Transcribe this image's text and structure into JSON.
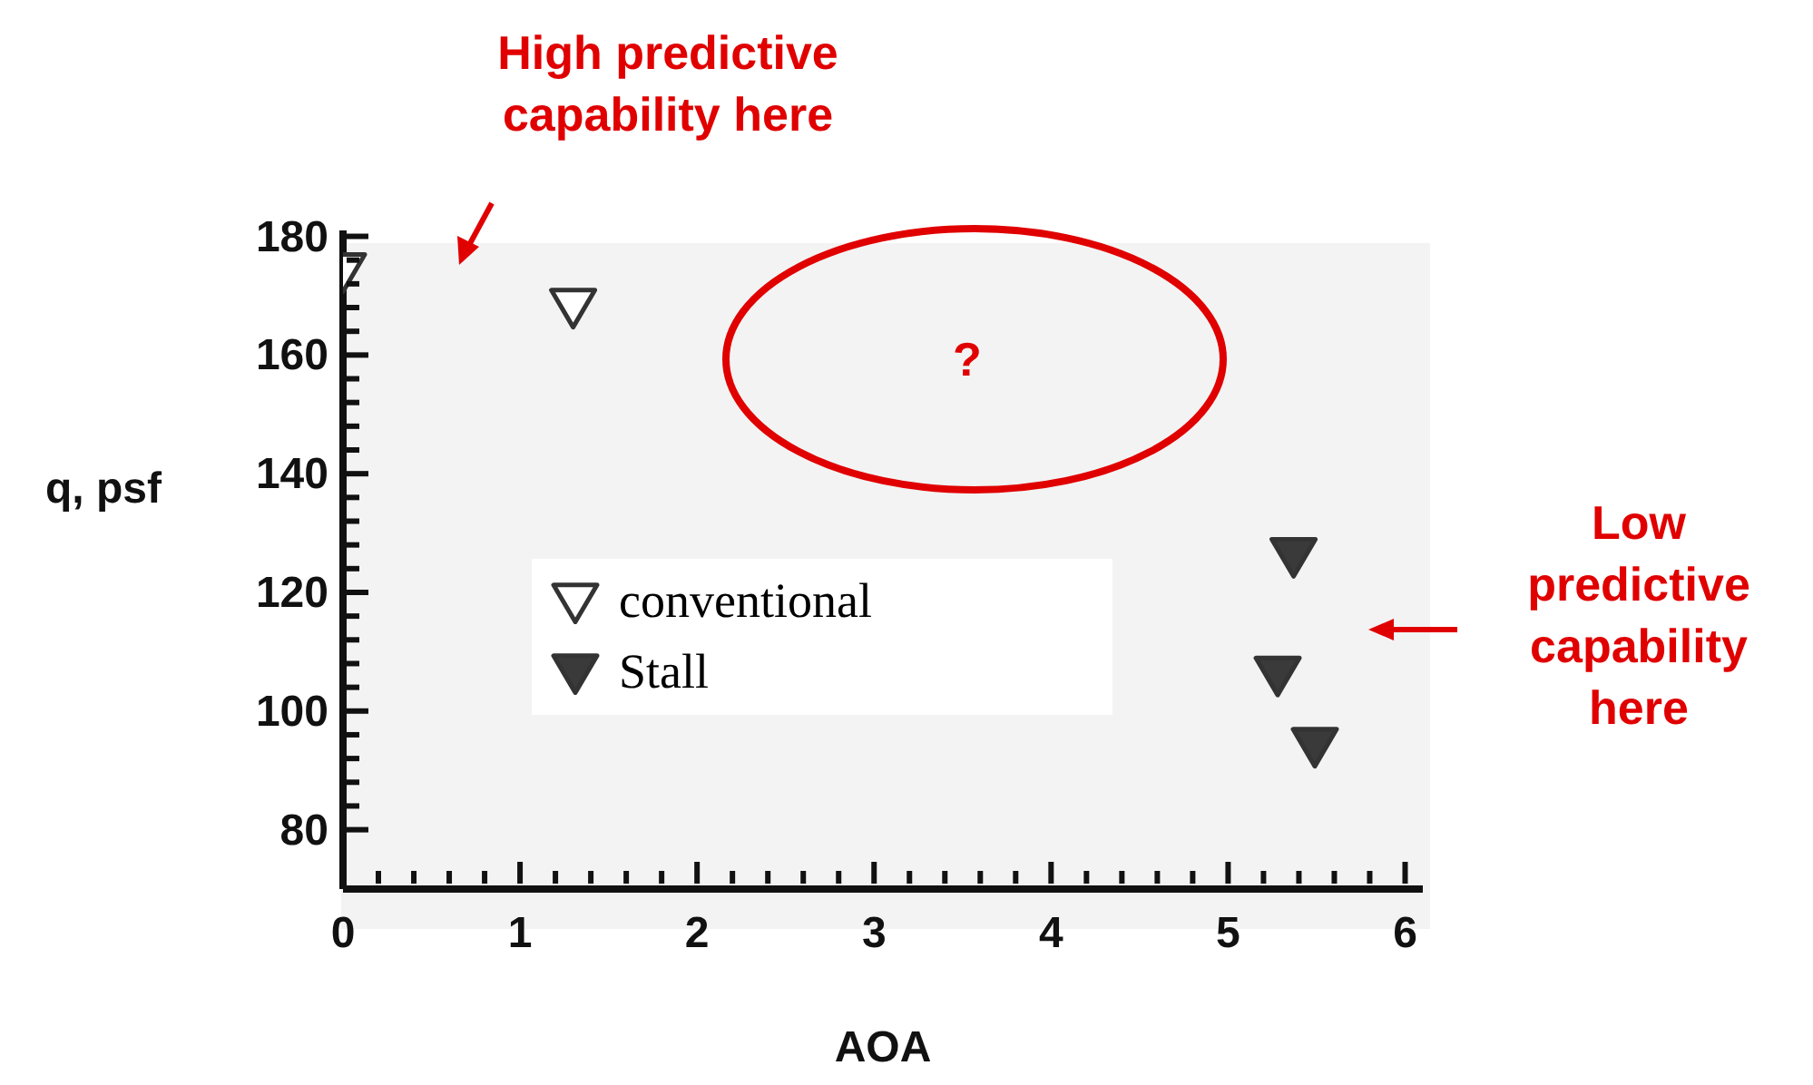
{
  "chart_data": {
    "type": "scatter",
    "xlabel": "AOA",
    "ylabel": "q, psf",
    "xlim": [
      0,
      6.1
    ],
    "ylim": [
      70,
      181
    ],
    "xticks": [
      0,
      {
        "value": 0.2,
        "label": null
      },
      {
        "value": 0.4,
        "label": null
      },
      {
        "value": 0.6,
        "label": null
      },
      {
        "value": 0.8,
        "label": null
      },
      1,
      {
        "value": 1.2,
        "label": null
      },
      {
        "value": 1.4,
        "label": null
      },
      {
        "value": 1.6,
        "label": null
      },
      {
        "value": 1.8,
        "label": null
      },
      2,
      {
        "value": 2.2,
        "label": null
      },
      {
        "value": 2.4,
        "label": null
      },
      {
        "value": 2.6,
        "label": null
      },
      {
        "value": 2.8,
        "label": null
      },
      3,
      {
        "value": 3.2,
        "label": null
      },
      {
        "value": 3.4,
        "label": null
      },
      {
        "value": 3.6,
        "label": null
      },
      {
        "value": 3.8,
        "label": null
      },
      4,
      {
        "value": 4.2,
        "label": null
      },
      {
        "value": 4.4,
        "label": null
      },
      {
        "value": 4.6,
        "label": null
      },
      {
        "value": 4.8,
        "label": null
      },
      5,
      {
        "value": 5.2,
        "label": null
      },
      {
        "value": 5.4,
        "label": null
      },
      {
        "value": 5.6,
        "label": null
      },
      {
        "value": 5.8,
        "label": null
      },
      6
    ],
    "yticks": [
      80,
      {
        "value": 84,
        "label": null
      },
      {
        "value": 88,
        "label": null
      },
      {
        "value": 92,
        "label": null
      },
      {
        "value": 96,
        "label": null
      },
      100,
      {
        "value": 104,
        "label": null
      },
      {
        "value": 108,
        "label": null
      },
      {
        "value": 112,
        "label": null
      },
      {
        "value": 116,
        "label": null
      },
      120,
      {
        "value": 124,
        "label": null
      },
      {
        "value": 128,
        "label": null
      },
      {
        "value": 132,
        "label": null
      },
      {
        "value": 136,
        "label": null
      },
      140,
      {
        "value": 144,
        "label": null
      },
      {
        "value": 148,
        "label": null
      },
      {
        "value": 152,
        "label": null
      },
      {
        "value": 156,
        "label": null
      },
      160,
      {
        "value": 164,
        "label": null
      },
      {
        "value": 168,
        "label": null
      },
      {
        "value": 172,
        "label": null
      },
      {
        "value": 176,
        "label": null
      },
      180
    ],
    "series": [
      {
        "name": "conventional",
        "color": "#ffffff",
        "x": [
          0,
          1.3
        ],
        "values": [
          174,
          168
        ]
      },
      {
        "name": "Stall",
        "color": "#3a3a3a",
        "x": [
          5.37,
          5.28,
          5.49
        ],
        "values": [
          126,
          106,
          94
        ]
      }
    ],
    "marker": "triangle",
    "legend": "left",
    "grid": false,
    "annotations": [
      "High predictive capability here",
      "?",
      "Low predictive capability here"
    ]
  }
}
